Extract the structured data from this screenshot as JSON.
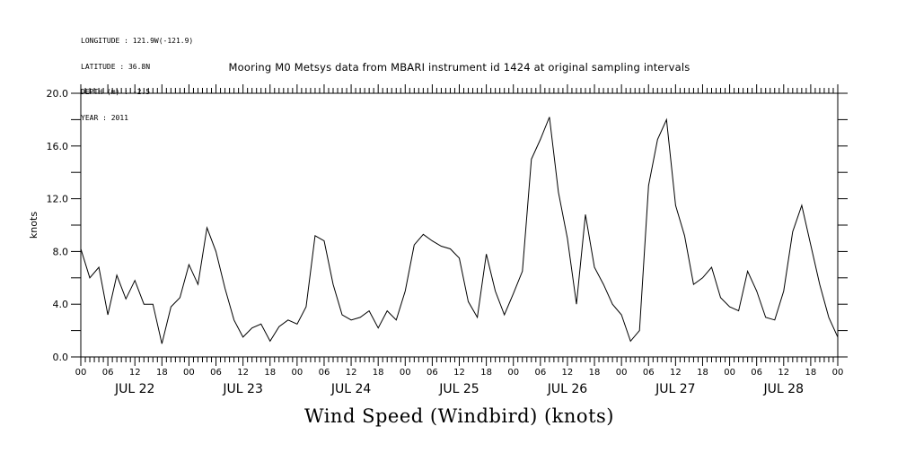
{
  "header": {
    "lines": [
      "LONGITUDE : 121.9W(-121.9)",
      "LATITUDE : 36.8N",
      "DEPTH (m) : -2.5",
      "YEAR : 2011"
    ]
  },
  "chart_data": {
    "type": "line",
    "title": "Mooring M0 Metsys data from MBARI instrument id 1424 at original sampling intervals",
    "xlabel": "Wind Speed (Windbird) (knots)",
    "ylabel": "knots",
    "xlim": [
      "2011-07-22 00:00",
      "2011-07-29 00:00"
    ],
    "ylim": [
      0,
      20
    ],
    "y_ticks": [
      "0.0",
      "4.0",
      "8.0",
      "12.0",
      "16.0",
      "20.0"
    ],
    "x_hour_labels": [
      "00",
      "06",
      "12",
      "18"
    ],
    "day_labels": [
      "JUL 22",
      "JUL 23",
      "JUL 24",
      "JUL 25",
      "JUL 26",
      "JUL 27",
      "JUL 28"
    ],
    "grid": false,
    "series": [
      {
        "x": [
          "07-22 00:00",
          "07-22 02:00",
          "07-22 04:00",
          "07-22 06:00",
          "07-22 08:00",
          "07-22 10:00",
          "07-22 12:00",
          "07-22 14:00",
          "07-22 16:00",
          "07-22 18:00",
          "07-22 20:00",
          "07-22 22:00",
          "07-23 00:00",
          "07-23 02:00",
          "07-23 04:00",
          "07-23 06:00",
          "07-23 08:00",
          "07-23 10:00",
          "07-23 12:00",
          "07-23 14:00",
          "07-23 16:00",
          "07-23 18:00",
          "07-23 20:00",
          "07-23 22:00",
          "07-24 00:00",
          "07-24 02:00",
          "07-24 04:00",
          "07-24 06:00",
          "07-24 08:00",
          "07-24 10:00",
          "07-24 12:00",
          "07-24 14:00",
          "07-24 16:00",
          "07-24 18:00",
          "07-24 20:00",
          "07-24 22:00",
          "07-25 00:00",
          "07-25 02:00",
          "07-25 04:00",
          "07-25 06:00",
          "07-25 08:00",
          "07-25 10:00",
          "07-25 12:00",
          "07-25 14:00",
          "07-25 16:00",
          "07-25 18:00",
          "07-25 20:00",
          "07-25 22:00",
          "07-26 00:00",
          "07-26 02:00",
          "07-26 04:00",
          "07-26 06:00",
          "07-26 08:00",
          "07-26 10:00",
          "07-26 12:00",
          "07-26 14:00",
          "07-26 16:00",
          "07-26 18:00",
          "07-26 20:00",
          "07-26 22:00",
          "07-27 00:00",
          "07-27 02:00",
          "07-27 04:00",
          "07-27 06:00",
          "07-27 08:00",
          "07-27 10:00",
          "07-27 12:00",
          "07-27 14:00",
          "07-27 16:00",
          "07-27 18:00",
          "07-27 20:00",
          "07-27 22:00",
          "07-28 00:00",
          "07-28 02:00",
          "07-28 04:00",
          "07-28 06:00",
          "07-28 08:00",
          "07-28 10:00",
          "07-28 12:00",
          "07-28 14:00",
          "07-28 16:00",
          "07-28 18:00",
          "07-28 20:00",
          "07-28 22:00",
          "07-29 00:00"
        ],
        "y": [
          8.2,
          6.0,
          6.8,
          3.2,
          6.2,
          4.4,
          5.8,
          4.0,
          4.0,
          1.0,
          3.8,
          4.5,
          7.0,
          5.5,
          9.8,
          8.0,
          5.2,
          2.8,
          1.5,
          2.2,
          2.5,
          1.2,
          2.3,
          2.8,
          2.5,
          3.8,
          9.2,
          8.8,
          5.5,
          3.2,
          2.8,
          3.0,
          3.5,
          2.2,
          3.5,
          2.8,
          5.0,
          8.5,
          9.3,
          8.8,
          8.4,
          8.2,
          7.5,
          4.2,
          3.0,
          7.8,
          5.0,
          3.2,
          4.8,
          6.5,
          15.0,
          16.5,
          18.2,
          12.5,
          9.0,
          4.0,
          10.8,
          6.8,
          5.5,
          4.0,
          3.2,
          1.2,
          2.0,
          13.0,
          16.5,
          18.0,
          11.5,
          9.2,
          5.5,
          6.0,
          6.8,
          4.5,
          3.8,
          3.5,
          6.5,
          5.0,
          3.0,
          2.8,
          5.0,
          9.5,
          11.5,
          8.5,
          5.5,
          3.0,
          1.5
        ]
      }
    ]
  }
}
